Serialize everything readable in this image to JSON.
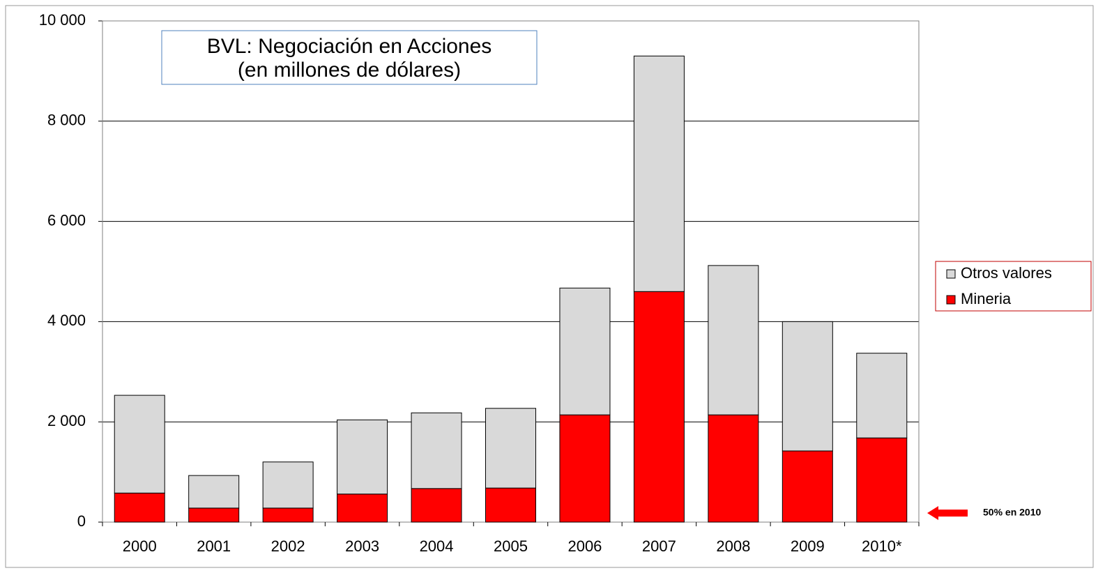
{
  "chart_data": {
    "type": "stacked_bar",
    "title": "BVL: Negociación en Acciones",
    "subtitle": "(en millones de dólares)",
    "annotation": "50% en 2010",
    "categories": [
      "2000",
      "2001",
      "2002",
      "2003",
      "2004",
      "2005",
      "2006",
      "2007",
      "2008",
      "2009",
      "2010*"
    ],
    "series": [
      {
        "name": "Mineria",
        "color": "#ff0000",
        "values": [
          580,
          280,
          280,
          560,
          670,
          680,
          2140,
          4600,
          2140,
          1420,
          1680
        ]
      },
      {
        "name": "Otros valores",
        "color": "#d9d9d9",
        "values": [
          1950,
          650,
          920,
          1480,
          1510,
          1590,
          2530,
          4700,
          2980,
          2580,
          1690
        ]
      }
    ],
    "ylim": [
      0,
      10000
    ],
    "yticks": [
      0,
      {
        "value": 2000,
        "label": "2 000"
      },
      {
        "value": 4000,
        "label": "4 000"
      },
      {
        "value": 6000,
        "label": "6 000"
      },
      {
        "value": 8000,
        "label": "8 000"
      },
      {
        "value": 10000,
        "label": "10 000"
      }
    ],
    "grid": true,
    "legend": "right"
  }
}
